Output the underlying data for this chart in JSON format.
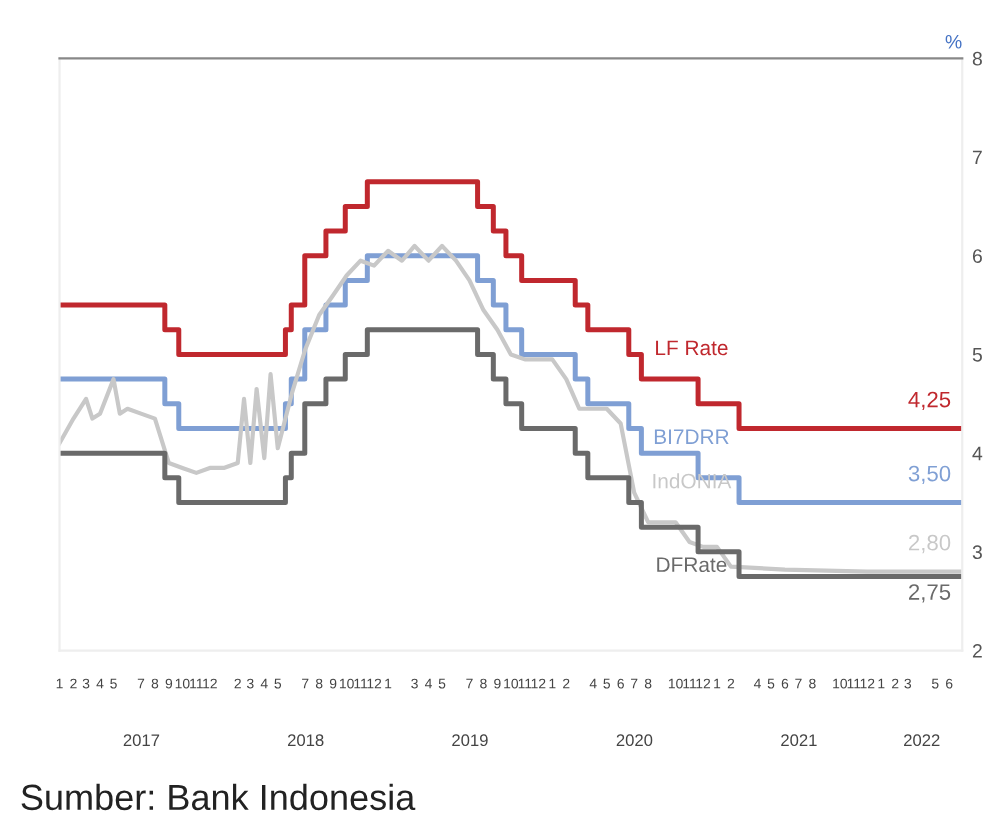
{
  "chart_data": {
    "type": "step",
    "ylabel": "%",
    "ylim": [
      2,
      8
    ],
    "yticks": [
      2,
      3,
      4,
      5,
      6,
      7,
      8
    ],
    "xlim": [
      "2017-01-01",
      "2022-06-30"
    ],
    "xticks": [
      {
        "value": "2017-01",
        "label": "1"
      },
      {
        "value": "2017-02",
        "label": "2"
      },
      {
        "value": "2017-03",
        "label": "3"
      },
      {
        "value": "2017-04",
        "label": "4"
      },
      {
        "value": "2017-05",
        "label": "5"
      },
      {
        "value": "2017-07",
        "label": "7"
      },
      {
        "value": "2017-08",
        "label": "8"
      },
      {
        "value": "2017-09",
        "label": "9"
      },
      {
        "value": "2017-10",
        "label": "10"
      },
      {
        "value": "2017-11",
        "label": "11"
      },
      {
        "value": "2017-12",
        "label": "12"
      },
      {
        "value": "2018-02",
        "label": "2"
      },
      {
        "value": "2018-03",
        "label": "3"
      },
      {
        "value": "2018-04",
        "label": "4"
      },
      {
        "value": "2018-05",
        "label": "5"
      },
      {
        "value": "2018-07",
        "label": "7"
      },
      {
        "value": "2018-08",
        "label": "8"
      },
      {
        "value": "2018-09",
        "label": "9"
      },
      {
        "value": "2018-10",
        "label": "10"
      },
      {
        "value": "2018-11",
        "label": "11"
      },
      {
        "value": "2018-12",
        "label": "12"
      },
      {
        "value": "2019-01",
        "label": "1"
      },
      {
        "value": "2019-03",
        "label": "3"
      },
      {
        "value": "2019-04",
        "label": "4"
      },
      {
        "value": "2019-05",
        "label": "5"
      },
      {
        "value": "2019-07",
        "label": "7"
      },
      {
        "value": "2019-08",
        "label": "8"
      },
      {
        "value": "2019-09",
        "label": "9"
      },
      {
        "value": "2019-10",
        "label": "10"
      },
      {
        "value": "2019-11",
        "label": "11"
      },
      {
        "value": "2019-12",
        "label": "12"
      },
      {
        "value": "2020-01",
        "label": "1"
      },
      {
        "value": "2020-02",
        "label": "2"
      },
      {
        "value": "2020-04",
        "label": "4"
      },
      {
        "value": "2020-05",
        "label": "5"
      },
      {
        "value": "2020-06",
        "label": "6"
      },
      {
        "value": "2020-07",
        "label": "7"
      },
      {
        "value": "2020-08",
        "label": "8"
      },
      {
        "value": "2020-10",
        "label": "10"
      },
      {
        "value": "2020-11",
        "label": "11"
      },
      {
        "value": "2020-12",
        "label": "12"
      },
      {
        "value": "2021-01",
        "label": "1"
      },
      {
        "value": "2021-02",
        "label": "2"
      },
      {
        "value": "2021-04",
        "label": "4"
      },
      {
        "value": "2021-05",
        "label": "5"
      },
      {
        "value": "2021-06",
        "label": "6"
      },
      {
        "value": "2021-07",
        "label": "7"
      },
      {
        "value": "2021-08",
        "label": "8"
      },
      {
        "value": "2021-10",
        "label": "10"
      },
      {
        "value": "2021-11",
        "label": "11"
      },
      {
        "value": "2021-12",
        "label": "12"
      },
      {
        "value": "2022-01",
        "label": "1"
      },
      {
        "value": "2022-02",
        "label": "2"
      },
      {
        "value": "2022-03",
        "label": "3"
      },
      {
        "value": "2022-05",
        "label": "5"
      },
      {
        "value": "2022-06",
        "label": "6"
      }
    ],
    "grid": false,
    "legend": false,
    "series": [
      {
        "name": "LF Rate",
        "color": "#c0282e",
        "x": [
          "2017-01-01",
          "2017-08-23",
          "2017-09-23",
          "2018-05-18",
          "2018-05-31",
          "2018-06-30",
          "2018-08-16",
          "2018-09-28",
          "2018-11-16",
          "2019-07-19",
          "2019-08-23",
          "2019-09-20",
          "2019-10-25",
          "2020-02-21",
          "2020-03-20",
          "2020-06-19",
          "2020-07-17",
          "2020-11-20",
          "2021-02-19",
          "2022-06-30"
        ],
        "values": [
          5.5,
          5.25,
          5.0,
          5.25,
          5.5,
          6.0,
          6.25,
          6.5,
          6.75,
          6.5,
          6.25,
          6.0,
          5.75,
          5.5,
          5.25,
          5.0,
          4.75,
          4.5,
          4.25,
          4.25
        ],
        "value_labels": [
          null,
          null,
          null,
          null,
          null,
          null,
          null,
          null,
          null,
          null,
          null,
          null,
          null,
          null,
          null,
          null,
          null,
          null,
          null,
          "4,25"
        ]
      },
      {
        "name": "BI7DRR",
        "color": "#7f9fd4",
        "x": [
          "2017-01-01",
          "2017-08-23",
          "2017-09-23",
          "2018-05-18",
          "2018-05-31",
          "2018-06-30",
          "2018-08-16",
          "2018-09-28",
          "2018-11-16",
          "2019-07-19",
          "2019-08-23",
          "2019-09-20",
          "2019-10-25",
          "2020-02-21",
          "2020-03-20",
          "2020-06-19",
          "2020-07-17",
          "2020-11-20",
          "2021-02-19",
          "2022-06-30"
        ],
        "values": [
          4.75,
          4.5,
          4.25,
          4.5,
          4.75,
          5.25,
          5.5,
          5.75,
          6.0,
          5.75,
          5.5,
          5.25,
          5.0,
          4.75,
          4.5,
          4.25,
          4.0,
          3.75,
          3.5,
          3.5
        ],
        "value_labels": [
          null,
          null,
          null,
          null,
          null,
          null,
          null,
          null,
          null,
          null,
          null,
          null,
          null,
          null,
          null,
          null,
          null,
          null,
          null,
          "3,50"
        ]
      },
      {
        "name": "IndONIA",
        "color": "#c8c8c8",
        "type": "line",
        "x": [
          "2017-01-01",
          "2017-02-01",
          "2017-03-01",
          "2017-03-15",
          "2017-04-01",
          "2017-05-01",
          "2017-05-15",
          "2017-06-01",
          "2017-07-01",
          "2017-08-01",
          "2017-08-25",
          "2017-09-01",
          "2017-10-01",
          "2017-11-01",
          "2017-12-01",
          "2018-01-01",
          "2018-02-01",
          "2018-02-15",
          "2018-03-01",
          "2018-03-15",
          "2018-04-01",
          "2018-04-15",
          "2018-05-01",
          "2018-06-01",
          "2018-07-01",
          "2018-08-01",
          "2018-09-01",
          "2018-10-01",
          "2018-11-01",
          "2018-12-01",
          "2019-01-01",
          "2019-02-01",
          "2019-03-01",
          "2019-04-01",
          "2019-05-01",
          "2019-06-01",
          "2019-07-01",
          "2019-08-01",
          "2019-09-01",
          "2019-10-01",
          "2019-11-01",
          "2019-12-01",
          "2020-01-01",
          "2020-02-01",
          "2020-03-01",
          "2020-04-01",
          "2020-05-01",
          "2020-06-01",
          "2020-07-01",
          "2020-08-01",
          "2020-09-01",
          "2020-10-01",
          "2020-11-01",
          "2020-12-01",
          "2021-01-01",
          "2021-02-01",
          "2021-06-01",
          "2021-12-01",
          "2022-06-30"
        ],
        "values": [
          4.1,
          4.35,
          4.55,
          4.35,
          4.4,
          4.75,
          4.4,
          4.45,
          4.4,
          4.35,
          4.0,
          3.9,
          3.85,
          3.8,
          3.85,
          3.85,
          3.9,
          4.55,
          3.9,
          4.65,
          3.95,
          4.8,
          4.05,
          4.6,
          5.05,
          5.4,
          5.6,
          5.8,
          5.95,
          5.9,
          6.05,
          5.95,
          6.1,
          5.95,
          6.1,
          5.95,
          5.75,
          5.45,
          5.25,
          5.0,
          4.95,
          4.95,
          4.95,
          4.75,
          4.45,
          4.45,
          4.45,
          4.3,
          3.6,
          3.3,
          3.3,
          3.3,
          3.1,
          3.05,
          3.05,
          2.85,
          2.82,
          2.8,
          2.8
        ],
        "value_labels": [
          null,
          null,
          null,
          null,
          null,
          null,
          null,
          null,
          null,
          null,
          null,
          null,
          null,
          null,
          null,
          null,
          null,
          null,
          null,
          null,
          null,
          null,
          null,
          null,
          null,
          null,
          null,
          null,
          null,
          null,
          null,
          null,
          null,
          null,
          null,
          null,
          null,
          null,
          null,
          null,
          null,
          null,
          null,
          null,
          null,
          null,
          null,
          null,
          null,
          null,
          null,
          null,
          null,
          null,
          null,
          null,
          null,
          null,
          "2,80"
        ]
      },
      {
        "name": "DFRate",
        "color": "#6a6a6a",
        "x": [
          "2017-01-01",
          "2017-08-23",
          "2017-09-23",
          "2018-05-18",
          "2018-05-31",
          "2018-06-30",
          "2018-08-16",
          "2018-09-28",
          "2018-11-16",
          "2019-07-19",
          "2019-08-23",
          "2019-09-20",
          "2019-10-25",
          "2020-02-21",
          "2020-03-20",
          "2020-06-19",
          "2020-07-17",
          "2020-11-20",
          "2021-02-19",
          "2022-06-30"
        ],
        "values": [
          4.0,
          3.75,
          3.5,
          3.75,
          4.0,
          4.5,
          4.75,
          5.0,
          5.25,
          5.0,
          4.75,
          4.5,
          4.25,
          4.0,
          3.75,
          3.5,
          3.25,
          3.0,
          2.75,
          2.75
        ],
        "value_labels": [
          null,
          null,
          null,
          null,
          null,
          null,
          null,
          null,
          null,
          null,
          null,
          null,
          null,
          null,
          null,
          null,
          null,
          null,
          null,
          "2,75"
        ]
      }
    ],
    "annotations": [
      "2017",
      "2018",
      "2019",
      "2020",
      "2021",
      "2022",
      "Sumber: Bank Indonesia"
    ]
  }
}
